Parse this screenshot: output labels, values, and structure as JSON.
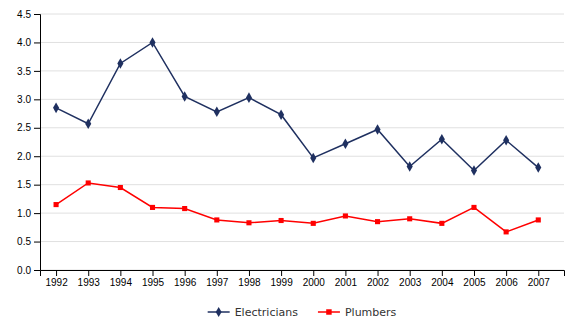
{
  "chart_data": {
    "type": "line",
    "x": [
      1992,
      1993,
      1994,
      1995,
      1996,
      1997,
      1998,
      1999,
      2000,
      2001,
      2002,
      2003,
      2004,
      2005,
      2006,
      2007
    ],
    "series": [
      {
        "name": "Electricians",
        "color": "#1f3060",
        "marker": "diamond",
        "values": [
          2.85,
          2.57,
          3.63,
          4.0,
          3.05,
          2.78,
          3.03,
          2.73,
          1.97,
          2.22,
          2.47,
          1.82,
          2.3,
          1.75,
          2.28,
          1.8
        ]
      },
      {
        "name": "Plumbers",
        "color": "#ff0000",
        "marker": "square",
        "values": [
          1.15,
          1.53,
          1.45,
          1.1,
          1.08,
          0.88,
          0.83,
          0.87,
          0.82,
          0.95,
          0.85,
          0.9,
          0.82,
          1.1,
          0.67,
          0.88
        ]
      }
    ],
    "xlim": [
      1991.5,
      2007.8
    ],
    "xticks": [
      1992,
      1993,
      1994,
      1995,
      1996,
      1997,
      1998,
      1999,
      2000,
      2001,
      2002,
      2003,
      2004,
      2005,
      2006,
      2007
    ],
    "ylim": [
      0.0,
      4.5
    ],
    "yticks": [
      {
        "value": 0,
        "label": "0.0"
      },
      0.5,
      {
        "value": 1,
        "label": "1.0"
      },
      1.5,
      {
        "value": 2,
        "label": "2.0"
      },
      2.5,
      {
        "value": 3,
        "label": "3.0"
      },
      3.5,
      {
        "value": 4,
        "label": "4.0"
      },
      4.5
    ],
    "grid": true,
    "legend": "bottom"
  }
}
